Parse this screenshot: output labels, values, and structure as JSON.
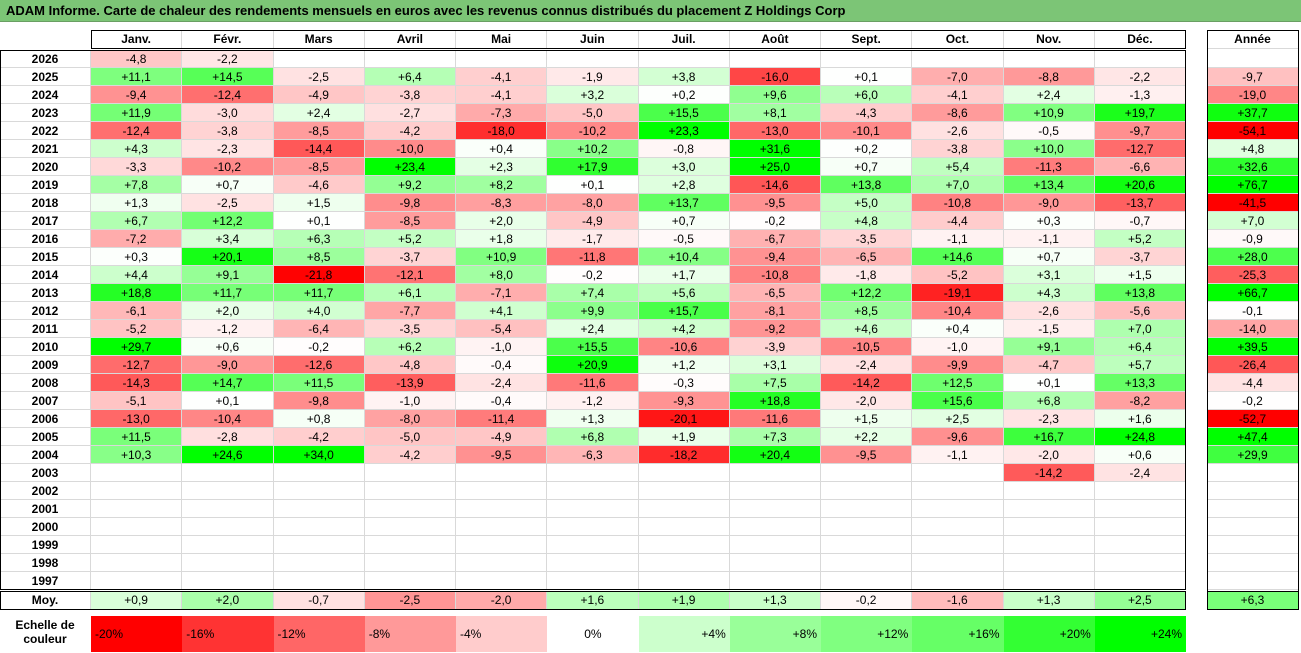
{
  "title": "ADAM Informe. Carte de chaleur des rendements mensuels en euros avec les revenus connus distribués du placement Z Holdings Corp",
  "chart_data": {
    "type": "heatmap",
    "title": "ADAM Informe. Carte de chaleur des rendements mensuels en euros avec les revenus connus distribués du placement Z Holdings Corp",
    "months": [
      "Janv.",
      "Févr.",
      "Mars",
      "Avril",
      "Mai",
      "Juin",
      "Juil.",
      "Août",
      "Sept.",
      "Oct.",
      "Nov.",
      "Déc."
    ],
    "annual_header": "Année",
    "rows": [
      {
        "year": "2026",
        "months": [
          "-4,8",
          "-2,2",
          "",
          "",
          "",
          "",
          "",
          "",
          "",
          "",
          "",
          ""
        ],
        "annual": ""
      },
      {
        "year": "2025",
        "months": [
          "+11,1",
          "+14,5",
          "-2,5",
          "+6,4",
          "-4,1",
          "-1,9",
          "+3,8",
          "-16,0",
          "+0,1",
          "-7,0",
          "-8,8",
          "-2,2"
        ],
        "annual": "-9,7"
      },
      {
        "year": "2024",
        "months": [
          "-9,4",
          "-12,4",
          "-4,9",
          "-3,8",
          "-4,1",
          "+3,2",
          "+0,2",
          "+9,6",
          "+6,0",
          "-4,1",
          "+2,4",
          "-1,3"
        ],
        "annual": "-19,0"
      },
      {
        "year": "2023",
        "months": [
          "+11,9",
          "-3,0",
          "+2,4",
          "-2,7",
          "-7,3",
          "-5,0",
          "+15,5",
          "+8,1",
          "-4,3",
          "-8,6",
          "+10,9",
          "+19,7"
        ],
        "annual": "+37,7"
      },
      {
        "year": "2022",
        "months": [
          "-12,4",
          "-3,8",
          "-8,5",
          "-4,2",
          "-18,0",
          "-10,2",
          "+23,3",
          "-13,0",
          "-10,1",
          "-2,6",
          "-0,5",
          "-9,7"
        ],
        "annual": "-54,1"
      },
      {
        "year": "2021",
        "months": [
          "+4,3",
          "-2,3",
          "-14,4",
          "-10,0",
          "+0,4",
          "+10,2",
          "-0,8",
          "+31,6",
          "+0,2",
          "-3,8",
          "+10,0",
          "-12,7"
        ],
        "annual": "+4,8"
      },
      {
        "year": "2020",
        "months": [
          "-3,3",
          "-10,2",
          "-8,5",
          "+23,4",
          "+2,3",
          "+17,9",
          "+3,0",
          "+25,0",
          "+0,7",
          "+5,4",
          "-11,3",
          "-6,6"
        ],
        "annual": "+32,6"
      },
      {
        "year": "2019",
        "months": [
          "+7,8",
          "+0,7",
          "-4,6",
          "+9,2",
          "+8,2",
          "+0,1",
          "+2,8",
          "-14,6",
          "+13,8",
          "+7,0",
          "+13,4",
          "+20,6"
        ],
        "annual": "+76,7"
      },
      {
        "year": "2018",
        "months": [
          "+1,3",
          "-2,5",
          "+1,5",
          "-9,8",
          "-8,3",
          "-8,0",
          "+13,7",
          "-9,5",
          "+5,0",
          "-10,8",
          "-9,0",
          "-13,7"
        ],
        "annual": "-41,5"
      },
      {
        "year": "2017",
        "months": [
          "+6,7",
          "+12,2",
          "+0,1",
          "-8,5",
          "+2,0",
          "-4,9",
          "+0,7",
          "-0,2",
          "+4,8",
          "-4,4",
          "+0,3",
          "-0,7"
        ],
        "annual": "+7,0"
      },
      {
        "year": "2016",
        "months": [
          "-7,2",
          "+3,4",
          "+6,3",
          "+5,2",
          "+1,8",
          "-1,7",
          "-0,5",
          "-6,7",
          "-3,5",
          "-1,1",
          "-1,1",
          "+5,2"
        ],
        "annual": "-0,9"
      },
      {
        "year": "2015",
        "months": [
          "+0,3",
          "+20,1",
          "+8,5",
          "-3,7",
          "+10,9",
          "-11,8",
          "+10,4",
          "-9,4",
          "-6,5",
          "+14,6",
          "+0,7",
          "-3,7"
        ],
        "annual": "+28,0"
      },
      {
        "year": "2014",
        "months": [
          "+4,4",
          "+9,1",
          "-21,8",
          "-12,1",
          "+8,0",
          "-0,2",
          "+1,7",
          "-10,8",
          "-1,8",
          "-5,2",
          "+3,1",
          "+1,5"
        ],
        "annual": "-25,3"
      },
      {
        "year": "2013",
        "months": [
          "+18,8",
          "+11,7",
          "+11,7",
          "+6,1",
          "-7,1",
          "+7,4",
          "+5,6",
          "-6,5",
          "+12,2",
          "-19,1",
          "+4,3",
          "+13,8"
        ],
        "annual": "+66,7"
      },
      {
        "year": "2012",
        "months": [
          "-6,1",
          "+2,0",
          "+4,0",
          "-7,7",
          "+4,1",
          "+9,9",
          "+15,7",
          "-8,1",
          "+8,5",
          "-10,4",
          "-2,6",
          "-5,6"
        ],
        "annual": "-0,1"
      },
      {
        "year": "2011",
        "months": [
          "-5,2",
          "-1,2",
          "-6,4",
          "-3,5",
          "-5,4",
          "+2,4",
          "+4,2",
          "-9,2",
          "+4,6",
          "+0,4",
          "-1,5",
          "+7,0"
        ],
        "annual": "-14,0"
      },
      {
        "year": "2010",
        "months": [
          "+29,7",
          "+0,6",
          "-0,2",
          "+6,2",
          "-1,0",
          "+15,5",
          "-10,6",
          "-3,9",
          "-10,5",
          "-1,0",
          "+9,1",
          "+6,4"
        ],
        "annual": "+39,5"
      },
      {
        "year": "2009",
        "months": [
          "-12,7",
          "-9,0",
          "-12,6",
          "-4,8",
          "-0,4",
          "+20,9",
          "+1,2",
          "+3,1",
          "-2,4",
          "-9,9",
          "-4,7",
          "+5,7"
        ],
        "annual": "-26,4"
      },
      {
        "year": "2008",
        "months": [
          "-14,3",
          "+14,7",
          "+11,5",
          "-13,9",
          "-2,4",
          "-11,6",
          "-0,3",
          "+7,5",
          "-14,2",
          "+12,5",
          "+0,1",
          "+13,3"
        ],
        "annual": "-4,4"
      },
      {
        "year": "2007",
        "months": [
          "-5,1",
          "+0,1",
          "-9,8",
          "-1,0",
          "-0,4",
          "-1,2",
          "-9,3",
          "+18,8",
          "-2,0",
          "+15,6",
          "+6,8",
          "-8,2"
        ],
        "annual": "-0,2"
      },
      {
        "year": "2006",
        "months": [
          "-13,0",
          "-10,4",
          "+0,8",
          "-8,0",
          "-11,4",
          "+1,3",
          "-20,1",
          "-11,6",
          "+1,5",
          "+2,5",
          "-2,3",
          "+1,6"
        ],
        "annual": "-52,7"
      },
      {
        "year": "2005",
        "months": [
          "+11,5",
          "-2,8",
          "-4,2",
          "-5,0",
          "-4,9",
          "+6,8",
          "+1,9",
          "+7,3",
          "+2,2",
          "-9,6",
          "+16,7",
          "+24,8"
        ],
        "annual": "+47,4"
      },
      {
        "year": "2004",
        "months": [
          "+10,3",
          "+24,6",
          "+34,0",
          "-4,2",
          "-9,5",
          "-6,3",
          "-18,2",
          "+20,4",
          "-9,5",
          "-1,1",
          "-2,0",
          "+0,6"
        ],
        "annual": "+29,9"
      },
      {
        "year": "2003",
        "months": [
          "",
          "",
          "",
          "",
          "",
          "",
          "",
          "",
          "",
          "",
          "-14,2",
          "-2,4"
        ],
        "annual": ""
      },
      {
        "year": "2002",
        "months": [
          "",
          "",
          "",
          "",
          "",
          "",
          "",
          "",
          "",
          "",
          "",
          ""
        ],
        "annual": ""
      },
      {
        "year": "2001",
        "months": [
          "",
          "",
          "",
          "",
          "",
          "",
          "",
          "",
          "",
          "",
          "",
          ""
        ],
        "annual": ""
      },
      {
        "year": "2000",
        "months": [
          "",
          "",
          "",
          "",
          "",
          "",
          "",
          "",
          "",
          "",
          "",
          ""
        ],
        "annual": ""
      },
      {
        "year": "1999",
        "months": [
          "",
          "",
          "",
          "",
          "",
          "",
          "",
          "",
          "",
          "",
          "",
          ""
        ],
        "annual": ""
      },
      {
        "year": "1998",
        "months": [
          "",
          "",
          "",
          "",
          "",
          "",
          "",
          "",
          "",
          "",
          "",
          ""
        ],
        "annual": ""
      },
      {
        "year": "1997",
        "months": [
          "",
          "",
          "",
          "",
          "",
          "",
          "",
          "",
          "",
          "",
          "",
          ""
        ],
        "annual": ""
      }
    ],
    "average": {
      "label": "Moy.",
      "months": [
        "+0,9",
        "+2,0",
        "-0,7",
        "-2,5",
        "-2,0",
        "+1,6",
        "+1,9",
        "+1,3",
        "-0,2",
        "-1,6",
        "+1,3",
        "+2,5"
      ],
      "annual": "+6,3"
    },
    "color_scale": {
      "label": "Echelle de couleur",
      "stops": [
        {
          "label": "-20%",
          "value": -20,
          "color": "#ff0000"
        },
        {
          "label": "-16%",
          "value": -16,
          "color": "#ff3333"
        },
        {
          "label": "-12%",
          "value": -12,
          "color": "#ff6666"
        },
        {
          "label": "-8%",
          "value": -8,
          "color": "#ff9999"
        },
        {
          "label": "-4%",
          "value": -4,
          "color": "#ffcccc"
        },
        {
          "label": "0%",
          "value": 0,
          "color": "#ffffff"
        },
        {
          "label": "+4%",
          "value": 4,
          "color": "#ccffcc"
        },
        {
          "label": "+8%",
          "value": 8,
          "color": "#99ff99"
        },
        {
          "label": "+12%",
          "value": 12,
          "color": "#80ff80"
        },
        {
          "label": "+16%",
          "value": 16,
          "color": "#66ff66"
        },
        {
          "label": "+20%",
          "value": 20,
          "color": "#33ff33"
        },
        {
          "label": "+24%",
          "value": 24,
          "color": "#00ff00"
        }
      ]
    }
  }
}
